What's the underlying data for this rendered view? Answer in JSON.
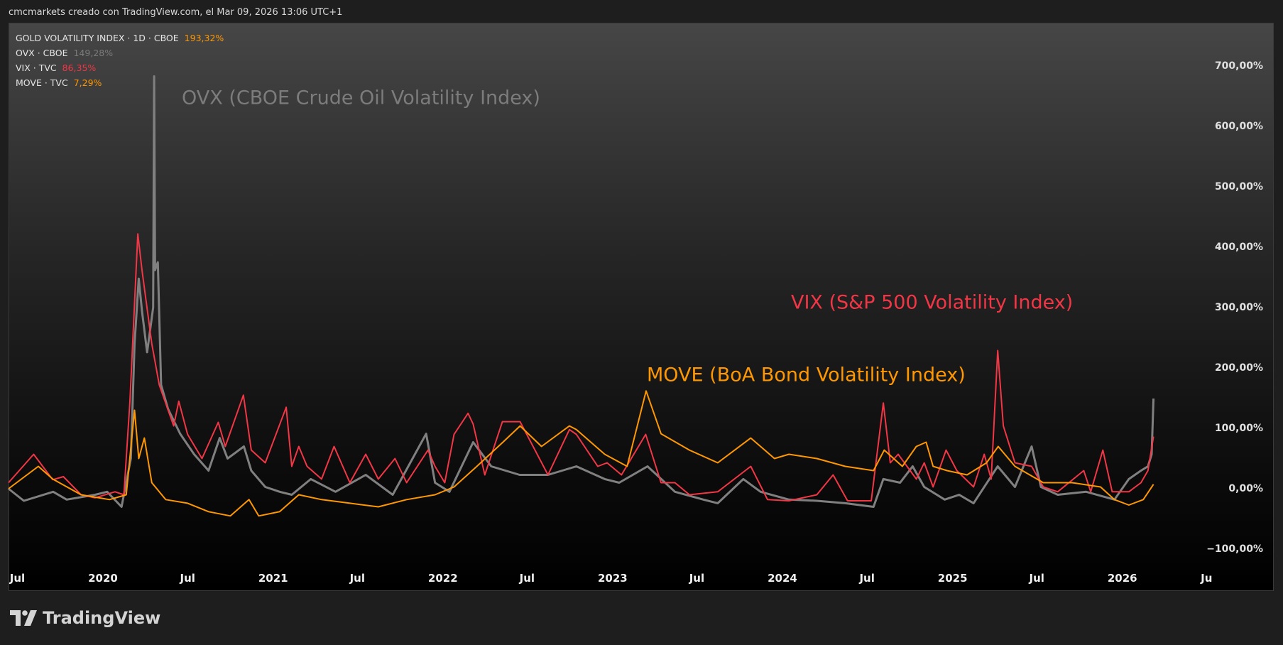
{
  "header": {
    "attribution": "cmcmarkets creado con TradingView.com, el Mar 09, 2026 13:06 UTC+1"
  },
  "legend": [
    {
      "label": "GOLD VOLATILITY INDEX · 1D · CBOE",
      "value": "193,32%",
      "color": "#ff9800"
    },
    {
      "label": "OVX · CBOE",
      "value": "149,28%",
      "color": "#7a7a7a"
    },
    {
      "label": "VIX · TVC",
      "value": "86,35%",
      "color": "#f23645"
    },
    {
      "label": "MOVE · TVC",
      "value": "7,29%",
      "color": "#ff9800"
    }
  ],
  "annotations": {
    "ovx": "OVX (CBOE Crude Oil Volatility Index)",
    "vix": "VIX (S&P 500 Volatility Index)",
    "move": "MOVE (BoA Bond Volatility Index)"
  },
  "footer": {
    "brand": "TradingView"
  },
  "chart_data": {
    "type": "line",
    "title": "",
    "xlabel": "",
    "ylabel": "",
    "y_unit": "% change",
    "ylim": [
      -120,
      720
    ],
    "grid": false,
    "legend_position": "top-left",
    "y_ticks": [
      {
        "value": 700,
        "label": "700,00%"
      },
      {
        "value": 600,
        "label": "600,00%"
      },
      {
        "value": 500,
        "label": "500,00%"
      },
      {
        "value": 400,
        "label": "400,00%"
      },
      {
        "value": 300,
        "label": "300,00%"
      },
      {
        "value": 200,
        "label": "200,00%"
      },
      {
        "value": 100,
        "label": "100,00%"
      },
      {
        "value": 0,
        "label": "0,00%"
      },
      {
        "value": -100,
        "label": "−100,00%"
      }
    ],
    "x_ticks": [
      {
        "date": "2019-07-01",
        "label": "Jul"
      },
      {
        "date": "2020-01-01",
        "label": "2020"
      },
      {
        "date": "2020-07-01",
        "label": "Jul"
      },
      {
        "date": "2021-01-01",
        "label": "2021"
      },
      {
        "date": "2021-07-01",
        "label": "Jul"
      },
      {
        "date": "2022-01-01",
        "label": "2022"
      },
      {
        "date": "2022-07-01",
        "label": "Jul"
      },
      {
        "date": "2023-01-01",
        "label": "2023"
      },
      {
        "date": "2023-07-01",
        "label": "Jul"
      },
      {
        "date": "2024-01-01",
        "label": "2024"
      },
      {
        "date": "2024-07-01",
        "label": "Jul"
      },
      {
        "date": "2025-01-01",
        "label": "2025"
      },
      {
        "date": "2025-07-01",
        "label": "Jul"
      },
      {
        "date": "2026-01-01",
        "label": "2026"
      },
      {
        "date": "2026-07-01",
        "label": "Ju"
      }
    ],
    "series": [
      {
        "name": "OVX · CBOE",
        "color": "#808080",
        "points": [
          [
            "2019-06-12",
            0
          ],
          [
            "2019-07-15",
            -20
          ],
          [
            "2019-09-16",
            -5
          ],
          [
            "2019-10-15",
            -18
          ],
          [
            "2019-12-15",
            -10
          ],
          [
            "2020-01-10",
            -5
          ],
          [
            "2020-02-10",
            -30
          ],
          [
            "2020-03-01",
            50
          ],
          [
            "2020-03-09",
            240
          ],
          [
            "2020-03-18",
            348
          ],
          [
            "2020-03-25",
            294
          ],
          [
            "2020-04-05",
            226
          ],
          [
            "2020-04-18",
            300
          ],
          [
            "2020-04-20",
            683
          ],
          [
            "2020-04-22",
            362
          ],
          [
            "2020-04-28",
            375
          ],
          [
            "2020-05-05",
            172
          ],
          [
            "2020-05-20",
            132
          ],
          [
            "2020-06-15",
            91
          ],
          [
            "2020-07-15",
            57
          ],
          [
            "2020-08-15",
            30
          ],
          [
            "2020-09-08",
            84
          ],
          [
            "2020-09-25",
            50
          ],
          [
            "2020-10-30",
            70
          ],
          [
            "2020-11-15",
            30
          ],
          [
            "2020-12-15",
            3
          ],
          [
            "2021-01-15",
            -5
          ],
          [
            "2021-02-10",
            -10
          ],
          [
            "2021-03-23",
            16
          ],
          [
            "2021-05-15",
            -5
          ],
          [
            "2021-07-19",
            23
          ],
          [
            "2021-09-15",
            -10
          ],
          [
            "2021-11-26",
            91
          ],
          [
            "2021-12-15",
            10
          ],
          [
            "2022-01-15",
            -5
          ],
          [
            "2022-03-07",
            77
          ],
          [
            "2022-04-15",
            37
          ],
          [
            "2022-06-15",
            23
          ],
          [
            "2022-08-15",
            23
          ],
          [
            "2022-10-15",
            37
          ],
          [
            "2022-12-15",
            16
          ],
          [
            "2023-01-15",
            10
          ],
          [
            "2023-03-17",
            37
          ],
          [
            "2023-05-15",
            -5
          ],
          [
            "2023-07-15",
            -18
          ],
          [
            "2023-08-15",
            -24
          ],
          [
            "2023-10-09",
            16
          ],
          [
            "2023-11-15",
            -5
          ],
          [
            "2024-01-15",
            -18
          ],
          [
            "2024-03-15",
            -20
          ],
          [
            "2024-05-15",
            -24
          ],
          [
            "2024-07-15",
            -30
          ],
          [
            "2024-08-05",
            16
          ],
          [
            "2024-09-10",
            10
          ],
          [
            "2024-10-07",
            37
          ],
          [
            "2024-11-01",
            3
          ],
          [
            "2024-12-15",
            -18
          ],
          [
            "2025-01-15",
            -10
          ],
          [
            "2025-02-15",
            -24
          ],
          [
            "2025-04-08",
            37
          ],
          [
            "2025-05-15",
            3
          ],
          [
            "2025-06-20",
            70
          ],
          [
            "2025-07-10",
            3
          ],
          [
            "2025-08-15",
            -10
          ],
          [
            "2025-10-15",
            -5
          ],
          [
            "2025-12-15",
            -18
          ],
          [
            "2026-01-15",
            16
          ],
          [
            "2026-02-10",
            30
          ],
          [
            "2026-02-25",
            37
          ],
          [
            "2026-03-05",
            57
          ],
          [
            "2026-03-09",
            149.28
          ]
        ]
      },
      {
        "name": "VIX · TVC",
        "color": "#f23645",
        "points": [
          [
            "2019-06-12",
            10
          ],
          [
            "2019-08-05",
            57
          ],
          [
            "2019-09-15",
            15
          ],
          [
            "2019-10-08",
            20
          ],
          [
            "2019-11-15",
            -10
          ],
          [
            "2019-12-15",
            -15
          ],
          [
            "2020-01-27",
            -5
          ],
          [
            "2020-02-15",
            -10
          ],
          [
            "2020-02-28",
            145
          ],
          [
            "2020-03-16",
            422
          ],
          [
            "2020-03-25",
            362
          ],
          [
            "2020-04-15",
            240
          ],
          [
            "2020-05-01",
            172
          ],
          [
            "2020-06-01",
            104
          ],
          [
            "2020-06-12",
            145
          ],
          [
            "2020-07-01",
            90
          ],
          [
            "2020-08-01",
            50
          ],
          [
            "2020-09-05",
            110
          ],
          [
            "2020-09-20",
            70
          ],
          [
            "2020-10-29",
            155
          ],
          [
            "2020-11-15",
            64
          ],
          [
            "2020-12-15",
            43
          ],
          [
            "2021-01-29",
            135
          ],
          [
            "2021-02-10",
            37
          ],
          [
            "2021-02-25",
            70
          ],
          [
            "2021-03-15",
            37
          ],
          [
            "2021-04-15",
            16
          ],
          [
            "2021-05-12",
            70
          ],
          [
            "2021-06-15",
            10
          ],
          [
            "2021-07-19",
            57
          ],
          [
            "2021-08-15",
            16
          ],
          [
            "2021-09-20",
            50
          ],
          [
            "2021-10-15",
            10
          ],
          [
            "2021-11-30",
            64
          ],
          [
            "2021-12-15",
            37
          ],
          [
            "2022-01-05",
            10
          ],
          [
            "2022-01-25",
            90
          ],
          [
            "2022-02-24",
            125
          ],
          [
            "2022-03-07",
            107
          ],
          [
            "2022-04-01",
            23
          ],
          [
            "2022-05-09",
            111
          ],
          [
            "2022-06-16",
            111
          ],
          [
            "2022-08-15",
            23
          ],
          [
            "2022-09-30",
            98
          ],
          [
            "2022-10-15",
            90
          ],
          [
            "2022-11-30",
            37
          ],
          [
            "2022-12-20",
            43
          ],
          [
            "2023-01-20",
            23
          ],
          [
            "2023-03-13",
            90
          ],
          [
            "2023-04-15",
            10
          ],
          [
            "2023-05-15",
            10
          ],
          [
            "2023-06-15",
            -10
          ],
          [
            "2023-08-15",
            -5
          ],
          [
            "2023-10-25",
            37
          ],
          [
            "2023-11-30",
            -18
          ],
          [
            "2024-01-15",
            -20
          ],
          [
            "2024-03-15",
            -10
          ],
          [
            "2024-04-19",
            23
          ],
          [
            "2024-05-20",
            -20
          ],
          [
            "2024-07-10",
            -20
          ],
          [
            "2024-08-05",
            142
          ],
          [
            "2024-08-20",
            43
          ],
          [
            "2024-09-06",
            57
          ],
          [
            "2024-10-15",
            16
          ],
          [
            "2024-11-01",
            43
          ],
          [
            "2024-11-20",
            3
          ],
          [
            "2024-12-18",
            64
          ],
          [
            "2025-01-10",
            30
          ],
          [
            "2025-02-15",
            3
          ],
          [
            "2025-03-10",
            57
          ],
          [
            "2025-03-25",
            16
          ],
          [
            "2025-04-08",
            229
          ],
          [
            "2025-04-20",
            104
          ],
          [
            "2025-05-15",
            43
          ],
          [
            "2025-06-20",
            37
          ],
          [
            "2025-07-15",
            3
          ],
          [
            "2025-08-15",
            -5
          ],
          [
            "2025-10-10",
            30
          ],
          [
            "2025-10-25",
            -5
          ],
          [
            "2025-11-20",
            64
          ],
          [
            "2025-12-10",
            -5
          ],
          [
            "2026-01-15",
            -5
          ],
          [
            "2026-02-10",
            10
          ],
          [
            "2026-02-25",
            30
          ],
          [
            "2026-03-09",
            86.35
          ]
        ]
      },
      {
        "name": "MOVE · TVC",
        "color": "#ff9800",
        "points": [
          [
            "2019-06-12",
            0
          ],
          [
            "2019-08-15",
            37
          ],
          [
            "2019-09-15",
            16
          ],
          [
            "2019-11-15",
            -10
          ],
          [
            "2020-01-15",
            -18
          ],
          [
            "2020-02-20",
            -10
          ],
          [
            "2020-03-09",
            130
          ],
          [
            "2020-03-18",
            50
          ],
          [
            "2020-03-30",
            84
          ],
          [
            "2020-04-15",
            10
          ],
          [
            "2020-05-15",
            -18
          ],
          [
            "2020-07-01",
            -24
          ],
          [
            "2020-08-15",
            -38
          ],
          [
            "2020-10-01",
            -45
          ],
          [
            "2020-11-10",
            -18
          ],
          [
            "2020-12-01",
            -45
          ],
          [
            "2021-01-15",
            -38
          ],
          [
            "2021-02-25",
            -10
          ],
          [
            "2021-04-15",
            -18
          ],
          [
            "2021-06-15",
            -24
          ],
          [
            "2021-08-15",
            -30
          ],
          [
            "2021-10-15",
            -18
          ],
          [
            "2021-12-15",
            -10
          ],
          [
            "2022-01-25",
            3
          ],
          [
            "2022-03-15",
            37
          ],
          [
            "2022-05-10",
            77
          ],
          [
            "2022-06-16",
            104
          ],
          [
            "2022-08-01",
            70
          ],
          [
            "2022-09-30",
            104
          ],
          [
            "2022-10-15",
            98
          ],
          [
            "2022-12-15",
            57
          ],
          [
            "2023-02-01",
            37
          ],
          [
            "2023-03-14",
            162
          ],
          [
            "2023-04-15",
            91
          ],
          [
            "2023-06-15",
            64
          ],
          [
            "2023-08-15",
            43
          ],
          [
            "2023-10-25",
            84
          ],
          [
            "2023-12-15",
            50
          ],
          [
            "2024-01-15",
            57
          ],
          [
            "2024-03-15",
            50
          ],
          [
            "2024-05-15",
            37
          ],
          [
            "2024-07-15",
            30
          ],
          [
            "2024-08-07",
            64
          ],
          [
            "2024-09-15",
            37
          ],
          [
            "2024-10-15",
            70
          ],
          [
            "2024-11-05",
            77
          ],
          [
            "2024-11-20",
            37
          ],
          [
            "2024-12-20",
            30
          ],
          [
            "2025-02-01",
            23
          ],
          [
            "2025-03-15",
            43
          ],
          [
            "2025-04-09",
            70
          ],
          [
            "2025-05-15",
            37
          ],
          [
            "2025-07-15",
            10
          ],
          [
            "2025-09-15",
            10
          ],
          [
            "2025-11-15",
            3
          ],
          [
            "2025-12-15",
            -18
          ],
          [
            "2026-01-15",
            -27
          ],
          [
            "2026-02-15",
            -18
          ],
          [
            "2026-03-09",
            7.29
          ]
        ]
      }
    ]
  }
}
